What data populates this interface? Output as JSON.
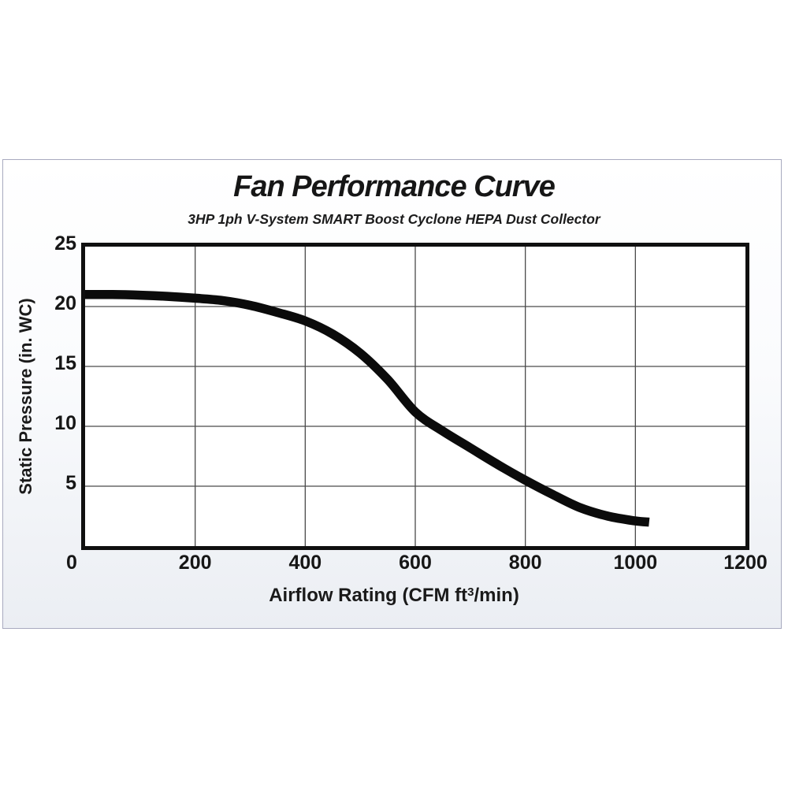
{
  "colors": {
    "curve": "#0b0b0b",
    "grid": "#4a4a4a",
    "frame": "#101010",
    "text": "#1a1a1a",
    "panel_border": "#a8aabf",
    "panel_bg_top": "#ffffff",
    "panel_bg_bottom": "#ebeef3"
  },
  "chart_data": {
    "type": "line",
    "title": "Fan Performance Curve",
    "subtitle": "3HP 1ph V-System SMART Boost Cyclone HEPA Dust Collector",
    "xlabel": "Airflow Rating (CFM ft³/min)",
    "xlabel_parts": [
      "Airflow Rating (CFM ft",
      "3",
      "/min)"
    ],
    "ylabel": "Static Pressure (in. WC)",
    "xlim": [
      0,
      1200
    ],
    "ylim": [
      0,
      25
    ],
    "x_ticks": [
      0,
      200,
      400,
      600,
      800,
      1000,
      1200
    ],
    "y_ticks": [
      25,
      20,
      15,
      10,
      5
    ],
    "grid": true,
    "legend": "none",
    "series": [
      {
        "name": "fan-performance-curve",
        "points": [
          [
            0,
            21.0
          ],
          [
            50,
            21.0
          ],
          [
            100,
            20.95
          ],
          [
            150,
            20.85
          ],
          [
            200,
            20.7
          ],
          [
            250,
            20.5
          ],
          [
            300,
            20.1
          ],
          [
            350,
            19.5
          ],
          [
            400,
            18.8
          ],
          [
            450,
            17.7
          ],
          [
            500,
            16.1
          ],
          [
            550,
            13.9
          ],
          [
            600,
            11.2
          ],
          [
            650,
            9.6
          ],
          [
            700,
            8.2
          ],
          [
            750,
            6.8
          ],
          [
            800,
            5.5
          ],
          [
            850,
            4.3
          ],
          [
            900,
            3.2
          ],
          [
            950,
            2.5
          ],
          [
            1000,
            2.1
          ],
          [
            1025,
            2.0
          ]
        ]
      }
    ]
  }
}
